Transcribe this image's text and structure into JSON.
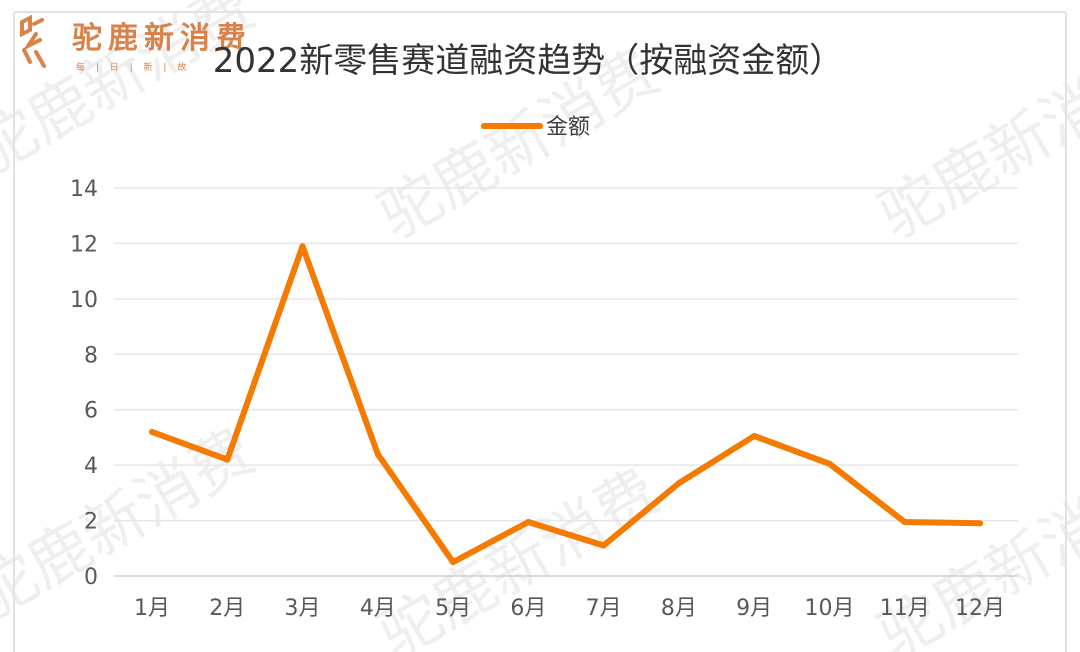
{
  "branding": {
    "logo_text": "驼鹿新消费",
    "tagline": "每 | 日 | 新 | 故",
    "logo_color": "#d9824a",
    "watermark_text": "驼鹿新消费"
  },
  "chart_data": {
    "type": "line",
    "title": "2022新零售赛道融资趋势（按融资金额）",
    "categories": [
      "1月",
      "2月",
      "3月",
      "4月",
      "5月",
      "6月",
      "7月",
      "8月",
      "9月",
      "10月",
      "11月",
      "12月"
    ],
    "series": [
      {
        "name": "金额",
        "color": "#f47a00",
        "values": [
          5.2,
          4.2,
          11.9,
          4.4,
          0.5,
          1.95,
          1.1,
          3.35,
          5.05,
          4.05,
          1.95,
          1.9
        ]
      }
    ],
    "ylim": [
      0,
      14
    ],
    "yticks": [
      0,
      2,
      4,
      6,
      8,
      10,
      12,
      14
    ],
    "xlabel": "",
    "ylabel": "",
    "grid": true,
    "legend_position": "top-center"
  }
}
